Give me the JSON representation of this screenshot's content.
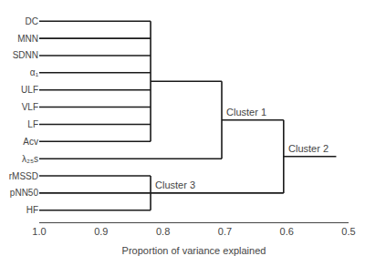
{
  "chart_data": {
    "type": "dendrogram",
    "xlabel": "Proportion of variance explained",
    "categories": [
      "DC",
      "MNN",
      "SDNN",
      "α₁",
      "ULF",
      "VLF",
      "LF",
      "Acv",
      "λ₂₅s",
      "rMSSD",
      "pNN50",
      "HF"
    ],
    "leaf_x": 1.0,
    "merges": [
      {
        "x": 0.82,
        "members": [
          "DC",
          "MNN",
          "SDNN",
          "α₁",
          "ULF",
          "VLF",
          "LF",
          "Acv"
        ]
      },
      {
        "x": 0.705,
        "members": [
          0,
          "λ₂₅s"
        ],
        "label": "Cluster 1"
      },
      {
        "x": 0.82,
        "members": [
          "rMSSD",
          "pNN50",
          "HF"
        ],
        "label": "Cluster 3"
      },
      {
        "x": 0.605,
        "members": [
          1,
          2
        ],
        "label": "Cluster 2"
      }
    ],
    "root_x": 0.52,
    "xlim": [
      1.0,
      0.5
    ],
    "xticks": [
      {
        "value": 1.0,
        "label": "1.0"
      },
      0.9,
      0.8,
      0.7,
      0.6,
      0.5
    ],
    "color": "#1a1a1a",
    "grid": false
  }
}
